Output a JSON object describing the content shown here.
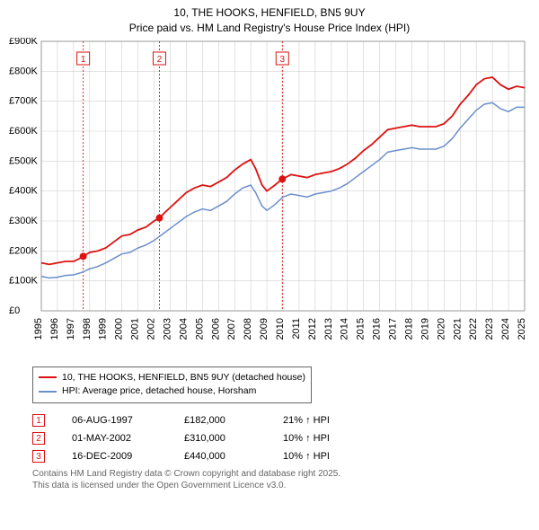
{
  "title_line1": "10, THE HOOKS, HENFIELD, BN5 9UY",
  "title_line2": "Price paid vs. HM Land Registry's House Price Index (HPI)",
  "chart": {
    "type": "line",
    "background_color": "#ffffff",
    "grid_color": "#d0d0d0",
    "border_color": "#888888",
    "ylim": [
      0,
      900000
    ],
    "ytick_step": 100000,
    "y_axis_labels": [
      "£0",
      "£100K",
      "£200K",
      "£300K",
      "£400K",
      "£500K",
      "£600K",
      "£700K",
      "£800K",
      "£900K"
    ],
    "x_years": [
      1995,
      1996,
      1997,
      1998,
      1999,
      2000,
      2001,
      2002,
      2003,
      2004,
      2005,
      2006,
      2007,
      2008,
      2009,
      2010,
      2011,
      2012,
      2013,
      2014,
      2015,
      2016,
      2017,
      2018,
      2019,
      2020,
      2021,
      2022,
      2023,
      2024,
      2025
    ],
    "label_fontsize": 11,
    "series": [
      {
        "name": "10, THE HOOKS, HENFIELD, BN5 9UY (detached house)",
        "color": "#dd1111",
        "line_width": 1.8,
        "data": [
          [
            1995,
            160000
          ],
          [
            1995.5,
            155000
          ],
          [
            1996,
            160000
          ],
          [
            1996.5,
            165000
          ],
          [
            1997,
            165000
          ],
          [
            1997.5,
            178000
          ],
          [
            1997.6,
            182000
          ],
          [
            1998,
            195000
          ],
          [
            1998.5,
            200000
          ],
          [
            1999,
            210000
          ],
          [
            1999.5,
            230000
          ],
          [
            2000,
            250000
          ],
          [
            2000.5,
            255000
          ],
          [
            2001,
            270000
          ],
          [
            2001.5,
            280000
          ],
          [
            2002,
            300000
          ],
          [
            2002.33,
            310000
          ],
          [
            2002.7,
            330000
          ],
          [
            2003,
            345000
          ],
          [
            2003.5,
            370000
          ],
          [
            2004,
            395000
          ],
          [
            2004.5,
            410000
          ],
          [
            2005,
            420000
          ],
          [
            2005.5,
            415000
          ],
          [
            2006,
            430000
          ],
          [
            2006.5,
            445000
          ],
          [
            2007,
            470000
          ],
          [
            2007.5,
            490000
          ],
          [
            2008,
            505000
          ],
          [
            2008.3,
            475000
          ],
          [
            2008.7,
            420000
          ],
          [
            2009,
            400000
          ],
          [
            2009.5,
            420000
          ],
          [
            2009.96,
            440000
          ],
          [
            2010.5,
            455000
          ],
          [
            2011,
            450000
          ],
          [
            2011.5,
            445000
          ],
          [
            2012,
            455000
          ],
          [
            2012.5,
            460000
          ],
          [
            2013,
            465000
          ],
          [
            2013.5,
            475000
          ],
          [
            2014,
            490000
          ],
          [
            2014.5,
            510000
          ],
          [
            2015,
            535000
          ],
          [
            2015.5,
            555000
          ],
          [
            2016,
            580000
          ],
          [
            2016.5,
            605000
          ],
          [
            2017,
            610000
          ],
          [
            2017.5,
            615000
          ],
          [
            2018,
            620000
          ],
          [
            2018.5,
            615000
          ],
          [
            2019,
            615000
          ],
          [
            2019.5,
            615000
          ],
          [
            2020,
            625000
          ],
          [
            2020.5,
            650000
          ],
          [
            2021,
            690000
          ],
          [
            2021.5,
            720000
          ],
          [
            2022,
            755000
          ],
          [
            2022.5,
            775000
          ],
          [
            2023,
            780000
          ],
          [
            2023.5,
            755000
          ],
          [
            2024,
            740000
          ],
          [
            2024.5,
            750000
          ],
          [
            2025,
            745000
          ]
        ]
      },
      {
        "name": "HPI: Average price, detached house, Horsham",
        "color": "#6a8fcc",
        "line_width": 1.5,
        "data": [
          [
            1995,
            115000
          ],
          [
            1995.5,
            110000
          ],
          [
            1996,
            112000
          ],
          [
            1996.5,
            118000
          ],
          [
            1997,
            120000
          ],
          [
            1997.5,
            128000
          ],
          [
            1998,
            140000
          ],
          [
            1998.5,
            148000
          ],
          [
            1999,
            160000
          ],
          [
            1999.5,
            175000
          ],
          [
            2000,
            190000
          ],
          [
            2000.5,
            195000
          ],
          [
            2001,
            210000
          ],
          [
            2001.5,
            220000
          ],
          [
            2002,
            235000
          ],
          [
            2002.5,
            255000
          ],
          [
            2003,
            275000
          ],
          [
            2003.5,
            295000
          ],
          [
            2004,
            315000
          ],
          [
            2004.5,
            330000
          ],
          [
            2005,
            340000
          ],
          [
            2005.5,
            335000
          ],
          [
            2006,
            350000
          ],
          [
            2006.5,
            365000
          ],
          [
            2007,
            390000
          ],
          [
            2007.5,
            410000
          ],
          [
            2008,
            420000
          ],
          [
            2008.3,
            395000
          ],
          [
            2008.7,
            350000
          ],
          [
            2009,
            335000
          ],
          [
            2009.5,
            355000
          ],
          [
            2010,
            380000
          ],
          [
            2010.5,
            390000
          ],
          [
            2011,
            385000
          ],
          [
            2011.5,
            380000
          ],
          [
            2012,
            390000
          ],
          [
            2012.5,
            395000
          ],
          [
            2013,
            400000
          ],
          [
            2013.5,
            410000
          ],
          [
            2014,
            425000
          ],
          [
            2014.5,
            445000
          ],
          [
            2015,
            465000
          ],
          [
            2015.5,
            485000
          ],
          [
            2016,
            505000
          ],
          [
            2016.5,
            530000
          ],
          [
            2017,
            535000
          ],
          [
            2017.5,
            540000
          ],
          [
            2018,
            545000
          ],
          [
            2018.5,
            540000
          ],
          [
            2019,
            540000
          ],
          [
            2019.5,
            540000
          ],
          [
            2020,
            550000
          ],
          [
            2020.5,
            575000
          ],
          [
            2021,
            610000
          ],
          [
            2021.5,
            640000
          ],
          [
            2022,
            670000
          ],
          [
            2022.5,
            690000
          ],
          [
            2023,
            695000
          ],
          [
            2023.5,
            675000
          ],
          [
            2024,
            665000
          ],
          [
            2024.5,
            680000
          ],
          [
            2025,
            680000
          ]
        ]
      }
    ],
    "sale_markers": [
      {
        "label": "1",
        "year": 1997.6,
        "price": 182000,
        "color": "#dd1111"
      },
      {
        "label": "2",
        "year": 2002.33,
        "price": 310000,
        "color": "#dd1111"
      },
      {
        "label": "3",
        "year": 2009.96,
        "price": 440000,
        "color": "#dd1111"
      }
    ]
  },
  "legend": {
    "border_color": "#666666",
    "items": [
      {
        "color": "#dd1111",
        "label": "10, THE HOOKS, HENFIELD, BN5 9UY (detached house)"
      },
      {
        "color": "#6a8fcc",
        "label": "HPI: Average price, detached house, Horsham"
      }
    ]
  },
  "sales": [
    {
      "label": "1",
      "date": "06-AUG-1997",
      "price": "£182,000",
      "hpi": "21% ↑ HPI",
      "color": "#dd1111"
    },
    {
      "label": "2",
      "date": "01-MAY-2002",
      "price": "£310,000",
      "hpi": "10% ↑ HPI",
      "color": "#dd1111"
    },
    {
      "label": "3",
      "date": "16-DEC-2009",
      "price": "£440,000",
      "hpi": "10% ↑ HPI",
      "color": "#dd1111"
    }
  ],
  "footnote_line1": "Contains HM Land Registry data © Crown copyright and database right 2025.",
  "footnote_line2": "This data is licensed under the Open Government Licence v3.0."
}
